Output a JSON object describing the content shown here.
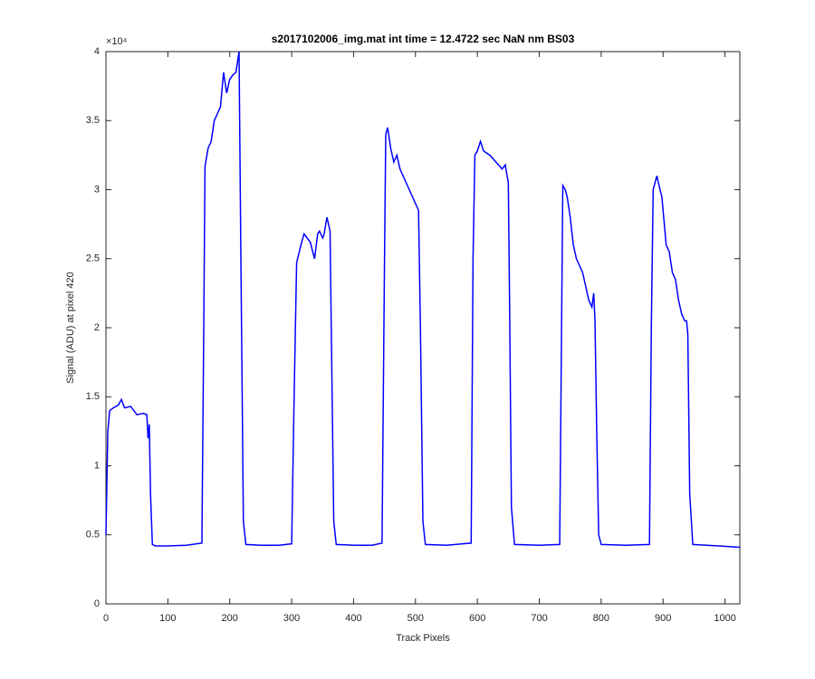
{
  "chart_data": {
    "type": "line",
    "title": "s2017102006_img.mat int time = 12.4722 sec  NaN nm BS03",
    "x_label": "Track Pixels",
    "y_label": "Signal (ADU) at pixel 420",
    "y_exponent_label": "×10⁴",
    "color": "#0000ff",
    "x": [
      0,
      3,
      6,
      12,
      20,
      25,
      30,
      40,
      50,
      60,
      66,
      68,
      70,
      72,
      75,
      80,
      100,
      130,
      155,
      158,
      160,
      165,
      170,
      175,
      180,
      185,
      190,
      195,
      200,
      205,
      210,
      215,
      218,
      222,
      226,
      250,
      280,
      300,
      304,
      308,
      315,
      320,
      325,
      330,
      337,
      342,
      345,
      350,
      352,
      357,
      362,
      364,
      368,
      372,
      400,
      430,
      446,
      450,
      452,
      455,
      460,
      465,
      470,
      475,
      480,
      490,
      495,
      500,
      505,
      508,
      512,
      516,
      550,
      590,
      593,
      596,
      600,
      605,
      610,
      620,
      630,
      640,
      645,
      650,
      652,
      655,
      660,
      700,
      733,
      736,
      738,
      742,
      745,
      750,
      755,
      760,
      765,
      770,
      775,
      780,
      785,
      788,
      790,
      793,
      796,
      800,
      840,
      878,
      881,
      884,
      890,
      895,
      898,
      905,
      910,
      915,
      920,
      925,
      930,
      935,
      938,
      940,
      943,
      948,
      990,
      1024
    ],
    "values": [
      5000,
      12500,
      14000,
      14200,
      14400,
      14800,
      14200,
      14300,
      13700,
      13800,
      13700,
      12000,
      13000,
      8000,
      4300,
      4200,
      4200,
      4250,
      4400,
      20000,
      31700,
      33000,
      33500,
      35000,
      35500,
      36000,
      38500,
      37000,
      38000,
      38300,
      38500,
      40000,
      25000,
      6000,
      4300,
      4250,
      4250,
      4350,
      15000,
      24700,
      26000,
      26800,
      26500,
      26200,
      25000,
      26800,
      27000,
      26500,
      26700,
      28000,
      27000,
      20000,
      6000,
      4300,
      4250,
      4250,
      4400,
      25000,
      34000,
      34500,
      33000,
      32000,
      32500,
      31500,
      31000,
      30000,
      29500,
      29000,
      28500,
      20000,
      6000,
      4300,
      4250,
      4400,
      25000,
      32500,
      32800,
      33500,
      32800,
      32500,
      32000,
      31500,
      31800,
      30500,
      22000,
      7000,
      4300,
      4250,
      4300,
      20000,
      30300,
      30000,
      29500,
      28000,
      26000,
      25000,
      24500,
      24000,
      23000,
      22000,
      21500,
      22500,
      20500,
      12000,
      5000,
      4300,
      4250,
      4300,
      20000,
      30000,
      31000,
      30000,
      29500,
      26000,
      25500,
      24000,
      23500,
      22000,
      21000,
      20500,
      20500,
      19500,
      8000,
      4300,
      4200,
      4100
    ],
    "xlim": [
      0,
      1024
    ],
    "xticks": [
      0,
      100,
      200,
      300,
      400,
      500,
      600,
      700,
      800,
      900,
      1000
    ],
    "ylim": [
      0,
      40000
    ],
    "yticks": [
      0,
      {
        "value": 5000,
        "label": "0.5"
      },
      {
        "value": 10000,
        "label": "1"
      },
      {
        "value": 15000,
        "label": "1.5"
      },
      {
        "value": 20000,
        "label": "2"
      },
      {
        "value": 25000,
        "label": "2.5"
      },
      {
        "value": 30000,
        "label": "3"
      },
      {
        "value": 35000,
        "label": "3.5"
      },
      {
        "value": 40000,
        "label": "4"
      }
    ]
  }
}
